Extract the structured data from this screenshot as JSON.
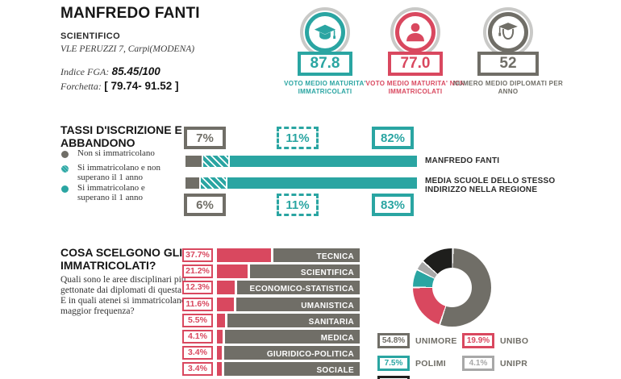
{
  "colors": {
    "teal": "#2aa5a2",
    "red": "#d9485f",
    "gray": "#706e67",
    "light_gray": "#a8a8a8",
    "black": "#1e1e1c",
    "ring_gray": "#c9c9c7"
  },
  "header": {
    "school_name": "MANFREDO FANTI",
    "school_type": "SCIENTIFICO",
    "address": "VLE PERUZZI 7, Carpi(MODENA)",
    "fga_label": "Indice FGA:",
    "fga_value": "85.45/100",
    "range_label": "Forchetta:",
    "range_value": "[ 79.74- 91.52 ]"
  },
  "kpis": [
    {
      "value": "87.8",
      "label": "VOTO MEDIO MATURITA' IMMATRICOLATI",
      "color": "#2aa5a2",
      "icon": "graduation-cap-icon"
    },
    {
      "value": "77.0",
      "label": "VOTO MEDIO MATURITA' NON IMMATRICOLATI",
      "color": "#d9485f",
      "icon": "person-icon"
    },
    {
      "value": "52",
      "label": "NUMERO MEDIO DIPLOMATI PER ANNO",
      "color": "#706e67",
      "icon": "graduate-icon"
    }
  ],
  "enrollment": {
    "title": "TASSI D'ISCRIZIONE E ABBANDONO",
    "legend": [
      {
        "label": "Non si immatricolano",
        "color": "#706e67"
      },
      {
        "label": "Si immatricolano e non superano il 1 anno",
        "color": "#2aa5a2"
      },
      {
        "label": "Si immatricolano e superano il 1 anno",
        "color": "#2aa5a2"
      }
    ],
    "top_labels": [
      "7%",
      "11%",
      "82%"
    ],
    "bottom_labels": [
      "6%",
      "11%",
      "83%"
    ],
    "rows": [
      {
        "label": "MANFREDO FANTI",
        "no_enroll": 7,
        "enroll_dropout": 11,
        "enroll_pass": 82
      },
      {
        "label": "MEDIA SCUOLE DELLO STESSO INDIRIZZO NELLA REGIONE",
        "no_enroll": 6,
        "enroll_dropout": 11,
        "enroll_pass": 83
      }
    ]
  },
  "choices": {
    "title": "COSA SCELGONO GLI IMMATRICOLATI?",
    "description": "Quali sono le aree disciplinari più gettonate dai diplomati di questa scuola?\nE in quali atenei si immatricolano con maggior frequenza?",
    "bars": [
      {
        "label": "TECNICA",
        "value": 37.7,
        "display": "37.7%"
      },
      {
        "label": "SCIENTIFICA",
        "value": 21.2,
        "display": "21.2%"
      },
      {
        "label": "ECONOMICO-STATISTICA",
        "value": 12.3,
        "display": "12.3%"
      },
      {
        "label": "UMANISTICA",
        "value": 11.6,
        "display": "11.6%"
      },
      {
        "label": "SANITARIA",
        "value": 5.5,
        "display": "5.5%"
      },
      {
        "label": "MEDICA",
        "value": 4.1,
        "display": "4.1%"
      },
      {
        "label": "GIURIDICO-POLITICA",
        "value": 3.4,
        "display": "3.4%"
      },
      {
        "label": "SOCIALE",
        "value": 3.4,
        "display": "3.4%"
      }
    ],
    "universities": [
      {
        "name": "UNIMORE",
        "value": 54.8,
        "display": "54.8%",
        "color": "#706e67"
      },
      {
        "name": "UNIBO",
        "value": 19.9,
        "display": "19.9%",
        "color": "#d9485f"
      },
      {
        "name": "POLIMI",
        "value": 7.5,
        "display": "7.5%",
        "color": "#2aa5a2"
      },
      {
        "name": "UNIPR",
        "value": 4.1,
        "display": "4.1%",
        "color": "#a8a8a8"
      },
      {
        "name": "",
        "value": 13.7,
        "display": "",
        "color": "#1e1e1c"
      }
    ]
  },
  "chart_data": [
    {
      "type": "bar",
      "subtype": "horizontal-stacked",
      "title": "TASSI D'ISCRIZIONE E ABBANDONO",
      "categories": [
        "MANFREDO FANTI",
        "MEDIA SCUOLE DELLO STESSO INDIRIZZO NELLA REGIONE"
      ],
      "series": [
        {
          "name": "Non si immatricolano",
          "values": [
            7,
            6
          ]
        },
        {
          "name": "Si immatricolano e non superano il 1 anno",
          "values": [
            11,
            11
          ]
        },
        {
          "name": "Si immatricolano e superano il 1 anno",
          "values": [
            82,
            83
          ]
        }
      ],
      "xlim": [
        0,
        100
      ],
      "unit": "%",
      "grid": false,
      "legend_position": "left"
    },
    {
      "type": "bar",
      "subtype": "horizontal",
      "title": "COSA SCELGONO GLI IMMATRICOLATI?",
      "categories": [
        "TECNICA",
        "SCIENTIFICA",
        "ECONOMICO-STATISTICA",
        "UMANISTICA",
        "SANITARIA",
        "MEDICA",
        "GIURIDICO-POLITICA",
        "SOCIALE"
      ],
      "values": [
        37.7,
        21.2,
        12.3,
        11.6,
        5.5,
        4.1,
        3.4,
        3.4
      ],
      "xlim": [
        0,
        100
      ],
      "unit": "%",
      "grid": false
    },
    {
      "type": "pie",
      "subtype": "donut",
      "labels": [
        "UNIMORE",
        "UNIBO",
        "POLIMI",
        "UNIPR",
        ""
      ],
      "values": [
        54.8,
        19.9,
        7.5,
        4.1,
        13.7
      ],
      "unit": "%",
      "legend_position": "bottom"
    }
  ]
}
